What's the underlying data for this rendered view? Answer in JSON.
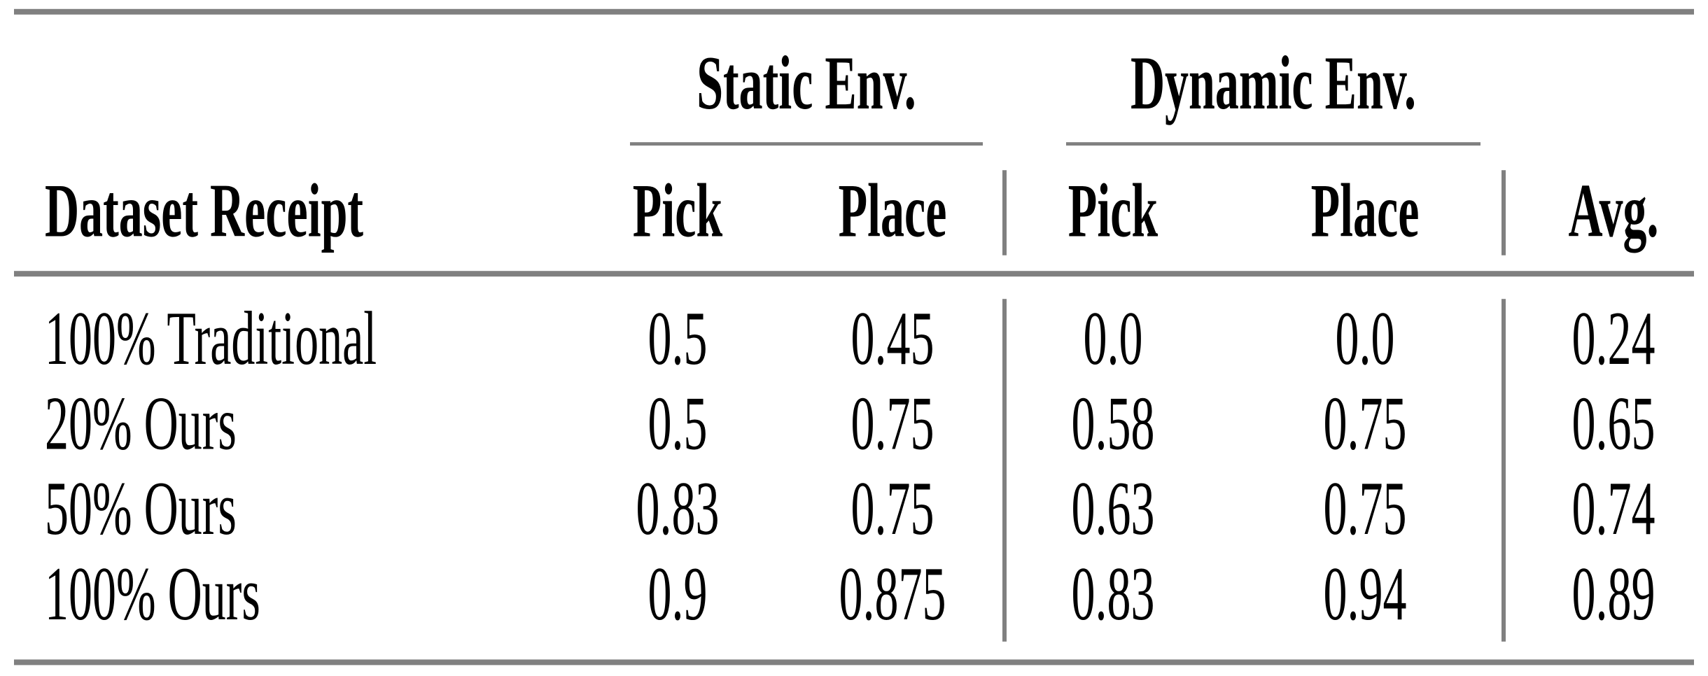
{
  "table": {
    "groups": {
      "static": "Static Env.",
      "dynamic": "Dynamic Env."
    },
    "header": {
      "dataset": "Dataset Receipt",
      "static_pick": "Pick",
      "static_place": "Place",
      "dynamic_pick": "Pick",
      "dynamic_place": "Place",
      "avg": "Avg."
    },
    "rows": [
      {
        "label": "100% Traditional",
        "static_pick": "0.5",
        "static_place": "0.45",
        "dynamic_pick": "0.0",
        "dynamic_place": "0.0",
        "avg": "0.24"
      },
      {
        "label": "20% Ours",
        "static_pick": "0.5",
        "static_place": "0.75",
        "dynamic_pick": "0.58",
        "dynamic_place": "0.75",
        "avg": "0.65"
      },
      {
        "label": "50% Ours",
        "static_pick": "0.83",
        "static_place": "0.75",
        "dynamic_pick": "0.63",
        "dynamic_place": "0.75",
        "avg": "0.74"
      },
      {
        "label": "100% Ours",
        "static_pick": "0.9",
        "static_place": "0.875",
        "dynamic_pick": "0.83",
        "dynamic_place": "0.94",
        "avg": "0.89"
      }
    ]
  },
  "colors": {
    "rule_gray": "#808080",
    "text": "#000000",
    "background": "#ffffff"
  }
}
